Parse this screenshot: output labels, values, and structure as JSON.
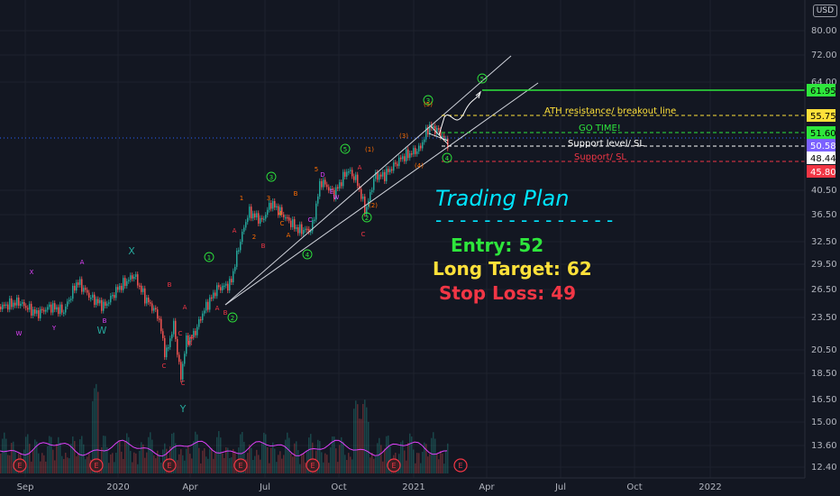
{
  "currency": "USD",
  "price_axis": {
    "ticks": [
      "80.00",
      "72.00",
      "64.00",
      "40.50",
      "36.50",
      "32.50",
      "29.50",
      "26.50",
      "23.50",
      "20.50",
      "18.50",
      "16.50",
      "15.00",
      "13.60",
      "12.40"
    ]
  },
  "price_badges": [
    {
      "id": "ath",
      "label": "61.95",
      "bg": "#2ee63c",
      "fg": "#000000"
    },
    {
      "id": "breakout",
      "label": "55.75",
      "bg": "#ffe13a",
      "fg": "#000000"
    },
    {
      "id": "entry",
      "label": "51.60",
      "bg": "#2ee63c",
      "fg": "#000000"
    },
    {
      "id": "current",
      "label": "50.58",
      "bg": "#7b61ff",
      "fg": "#ffffff"
    },
    {
      "id": "last",
      "label": "48.44",
      "bg": "#ffffff",
      "fg": "#000000"
    },
    {
      "id": "support",
      "label": "45.80",
      "bg": "#f23645",
      "fg": "#ffffff"
    }
  ],
  "time_axis": {
    "labels": [
      "Sep",
      "2020",
      "Apr",
      "Jul",
      "Oct",
      "2021",
      "Apr",
      "Jul",
      "Oct",
      "2022"
    ]
  },
  "annotations": {
    "ath": "ATH resistance/ breakout line",
    "go": "GO TIME!",
    "support_level": "Support level/ SL",
    "support": "Support/ SL"
  },
  "plan": {
    "title": "Trading Plan",
    "dashes": "- - - - - - - - - - - - - - -",
    "entry": "Entry: 52",
    "target": "Long Target: 62",
    "stop": "Stop Loss: 49"
  },
  "earnings_marker": "E",
  "colors": {
    "bg": "#131722",
    "up": "#26a69a",
    "down": "#ef5350",
    "accent_green": "#2ee63c",
    "yellow": "#ffe13a",
    "red": "#f23645",
    "magenta": "#e040fb",
    "orange": "#ff6d00"
  },
  "wave_labels": {
    "green": [
      "1",
      "2",
      "3",
      "4",
      "5",
      "2",
      "4",
      "5",
      "3"
    ],
    "orange": [
      "1",
      "2",
      "3",
      "4",
      "5",
      "A",
      "B",
      "C",
      "(1)",
      "(2)",
      "(3)",
      "(4)",
      "(5)"
    ],
    "magenta": [
      "W",
      "X",
      "Y",
      "A",
      "B",
      "C",
      "D",
      "E"
    ],
    "teal": [
      "W",
      "X",
      "Y"
    ]
  }
}
